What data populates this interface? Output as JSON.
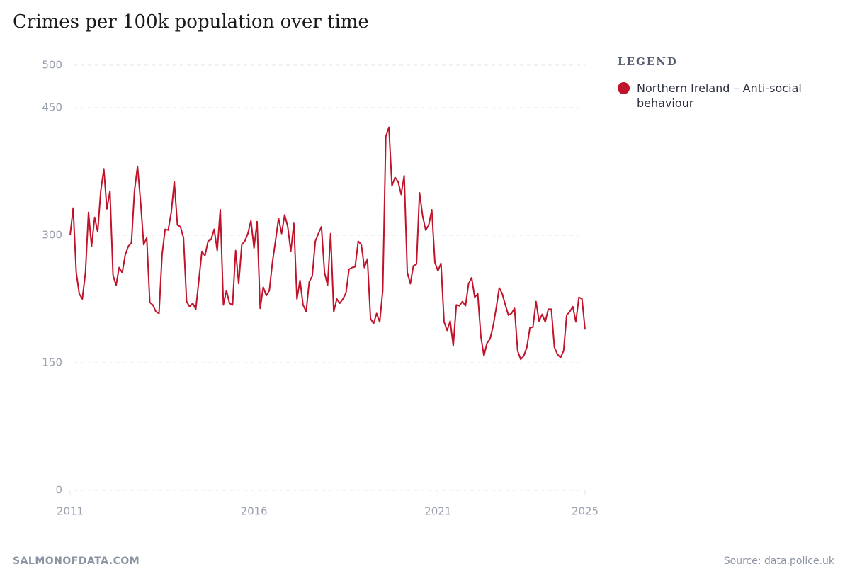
{
  "chart_data": {
    "type": "line",
    "title": "Crimes per 100k population over time",
    "legend_title": "LEGEND",
    "footer_left": "SALMONOFDATA.COM",
    "footer_right": "Source: data.police.uk",
    "xlim": [
      2011,
      2025
    ],
    "xticks": [
      2011,
      2016,
      2021,
      2025
    ],
    "ylim": [
      0,
      500
    ],
    "yticks": [
      0,
      150,
      300,
      450,
      500
    ],
    "grid": true,
    "x": [
      2011,
      2011.083,
      2011.167,
      2011.25,
      2011.333,
      2011.417,
      2011.5,
      2011.583,
      2011.667,
      2011.75,
      2011.833,
      2011.917,
      2012,
      2012.083,
      2012.167,
      2012.25,
      2012.333,
      2012.417,
      2012.5,
      2012.583,
      2012.667,
      2012.75,
      2012.833,
      2012.917,
      2013,
      2013.083,
      2013.167,
      2013.25,
      2013.333,
      2013.417,
      2013.5,
      2013.583,
      2013.667,
      2013.75,
      2013.833,
      2013.917,
      2014,
      2014.083,
      2014.167,
      2014.25,
      2014.333,
      2014.417,
      2014.5,
      2014.583,
      2014.667,
      2014.75,
      2014.833,
      2014.917,
      2015,
      2015.083,
      2015.167,
      2015.25,
      2015.333,
      2015.417,
      2015.5,
      2015.583,
      2015.667,
      2015.75,
      2015.833,
      2015.917,
      2016,
      2016.083,
      2016.167,
      2016.25,
      2016.333,
      2016.417,
      2016.5,
      2016.583,
      2016.667,
      2016.75,
      2016.833,
      2016.917,
      2017,
      2017.083,
      2017.167,
      2017.25,
      2017.333,
      2017.417,
      2017.5,
      2017.583,
      2017.667,
      2017.75,
      2017.833,
      2017.917,
      2018,
      2018.083,
      2018.167,
      2018.25,
      2018.333,
      2018.417,
      2018.5,
      2018.583,
      2018.667,
      2018.75,
      2018.833,
      2018.917,
      2019,
      2019.083,
      2019.167,
      2019.25,
      2019.333,
      2019.417,
      2019.5,
      2019.583,
      2019.667,
      2019.75,
      2019.833,
      2019.917,
      2020,
      2020.083,
      2020.167,
      2020.25,
      2020.333,
      2020.417,
      2020.5,
      2020.583,
      2020.667,
      2020.75,
      2020.833,
      2020.917,
      2021,
      2021.083,
      2021.167,
      2021.25,
      2021.333,
      2021.417,
      2021.5,
      2021.583,
      2021.667,
      2021.75,
      2021.833,
      2021.917,
      2022,
      2022.083,
      2022.167,
      2022.25,
      2022.333,
      2022.417,
      2022.5,
      2022.583,
      2022.667,
      2022.75,
      2022.833,
      2022.917,
      2023,
      2023.083,
      2023.167,
      2023.25,
      2023.333,
      2023.417,
      2023.5,
      2023.583,
      2023.667,
      2023.75,
      2023.833,
      2023.917,
      2024,
      2024.083,
      2024.167,
      2024.25,
      2024.333,
      2024.417,
      2024.5,
      2024.583,
      2024.667,
      2024.75,
      2024.833,
      2024.917,
      2025
    ],
    "series": [
      {
        "name": "Northern Ireland – Anti-social behaviour",
        "color": "#c0132b",
        "values": [
          300,
          332,
          256,
          231,
          225,
          256,
          327,
          287,
          321,
          304,
          352,
          378,
          331,
          352,
          253,
          241,
          262,
          256,
          277,
          287,
          291,
          352,
          381,
          339,
          289,
          297,
          221,
          218,
          210,
          208,
          277,
          307,
          306,
          327,
          363,
          312,
          310,
          297,
          222,
          216,
          220,
          213,
          247,
          281,
          276,
          293,
          295,
          307,
          282,
          330,
          218,
          235,
          220,
          218,
          282,
          243,
          289,
          293,
          302,
          317,
          285,
          316,
          214,
          239,
          229,
          235,
          268,
          293,
          320,
          302,
          324,
          310,
          281,
          314,
          225,
          247,
          218,
          210,
          245,
          252,
          293,
          302,
          310,
          256,
          241,
          302,
          210,
          225,
          220,
          225,
          232,
          260,
          262,
          263,
          293,
          289,
          262,
          272,
          202,
          196,
          208,
          198,
          235,
          416,
          427,
          358,
          368,
          363,
          348,
          370,
          256,
          243,
          264,
          266,
          350,
          323,
          306,
          312,
          330,
          268,
          258,
          267,
          198,
          188,
          199,
          170,
          218,
          217,
          222,
          217,
          243,
          250,
          227,
          231,
          181,
          158,
          173,
          178,
          193,
          214,
          238,
          231,
          218,
          206,
          208,
          214,
          164,
          154,
          158,
          168,
          191,
          192,
          222,
          199,
          207,
          198,
          213,
          213,
          168,
          160,
          156,
          164,
          206,
          210,
          216,
          198,
          227,
          225,
          189
        ]
      }
    ]
  }
}
